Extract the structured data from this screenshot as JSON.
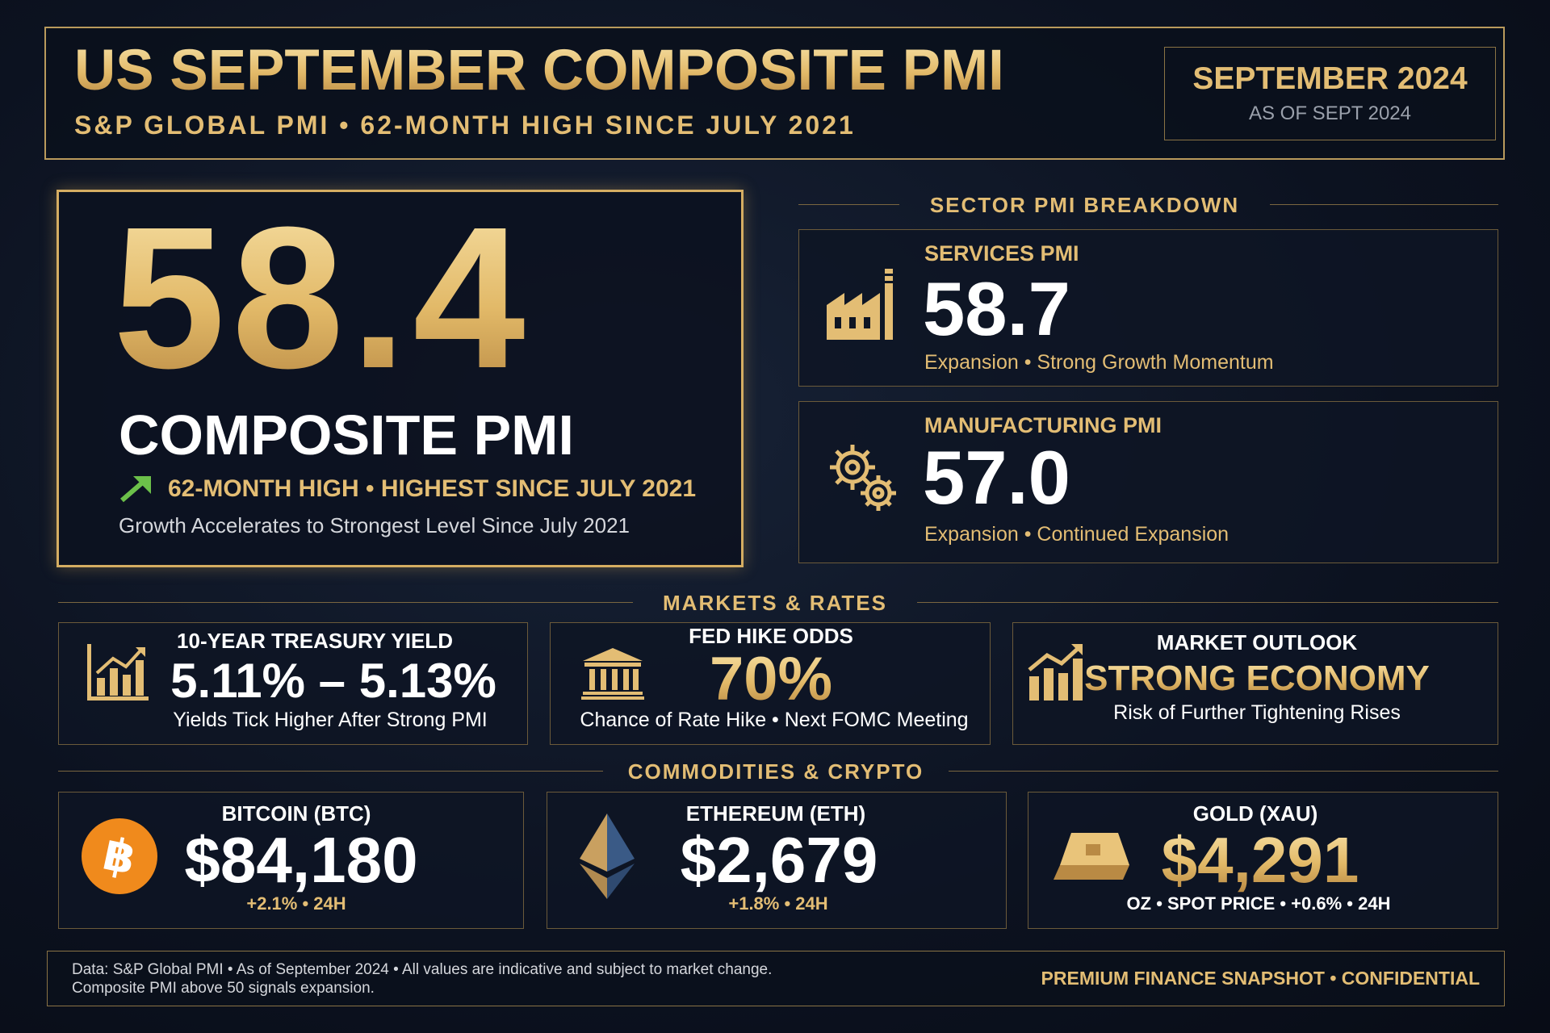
{
  "header": {
    "title": "US SEPTEMBER COMPOSITE PMI",
    "subtitle": "S&P GLOBAL PMI • 62-MONTH HIGH SINCE JULY 2021",
    "date": "SEPTEMBER 2024",
    "as_of": "AS OF SEPT 2024"
  },
  "composite": {
    "value": "58.4",
    "label": "COMPOSITE PMI",
    "highlight": "62-MONTH HIGH • HIGHEST SINCE JULY 2021",
    "note": "Growth Accelerates to Strongest Level Since July 2021"
  },
  "sectors": {
    "heading": "SECTOR PMI BREAKDOWN",
    "items": [
      {
        "label": "SERVICES PMI",
        "value": "58.7",
        "note": "Expansion • Strong Growth Momentum"
      },
      {
        "label": "MANUFACTURING PMI",
        "value": "57.0",
        "note": "Expansion • Continued Expansion"
      }
    ]
  },
  "markets": {
    "heading": "MARKETS & RATES",
    "items": [
      {
        "label": "10-YEAR TREASURY YIELD",
        "value": "5.11% – 5.13%",
        "note": "Yields Tick Higher After Strong PMI"
      },
      {
        "label": "FED HIKE ODDS",
        "value": "70%",
        "note": "Chance of Rate Hike • Next FOMC Meeting"
      },
      {
        "label": "MARKET OUTLOOK",
        "value": "STRONG ECONOMY",
        "note": "Risk of Further Tightening Rises"
      }
    ]
  },
  "commodities": {
    "heading": "COMMODITIES & CRYPTO",
    "items": [
      {
        "label": "BITCOIN (BTC)",
        "value": "$84,180",
        "note": "+2.1% • 24H"
      },
      {
        "label": "ETHEREUM (ETH)",
        "value": "$2,679",
        "note": "+1.8% • 24H"
      },
      {
        "label": "GOLD (XAU)",
        "value": "$4,291",
        "note": "OZ • SPOT PRICE • +0.6% • 24H"
      }
    ]
  },
  "footer": {
    "note_lines": [
      "Data: S&P Global PMI • As of September 2024 • All values are indicative and subject to market change.",
      "Composite PMI above 50 signals expansion."
    ],
    "tag": "PREMIUM FINANCE SNAPSHOT • CONFIDENTIAL"
  }
}
